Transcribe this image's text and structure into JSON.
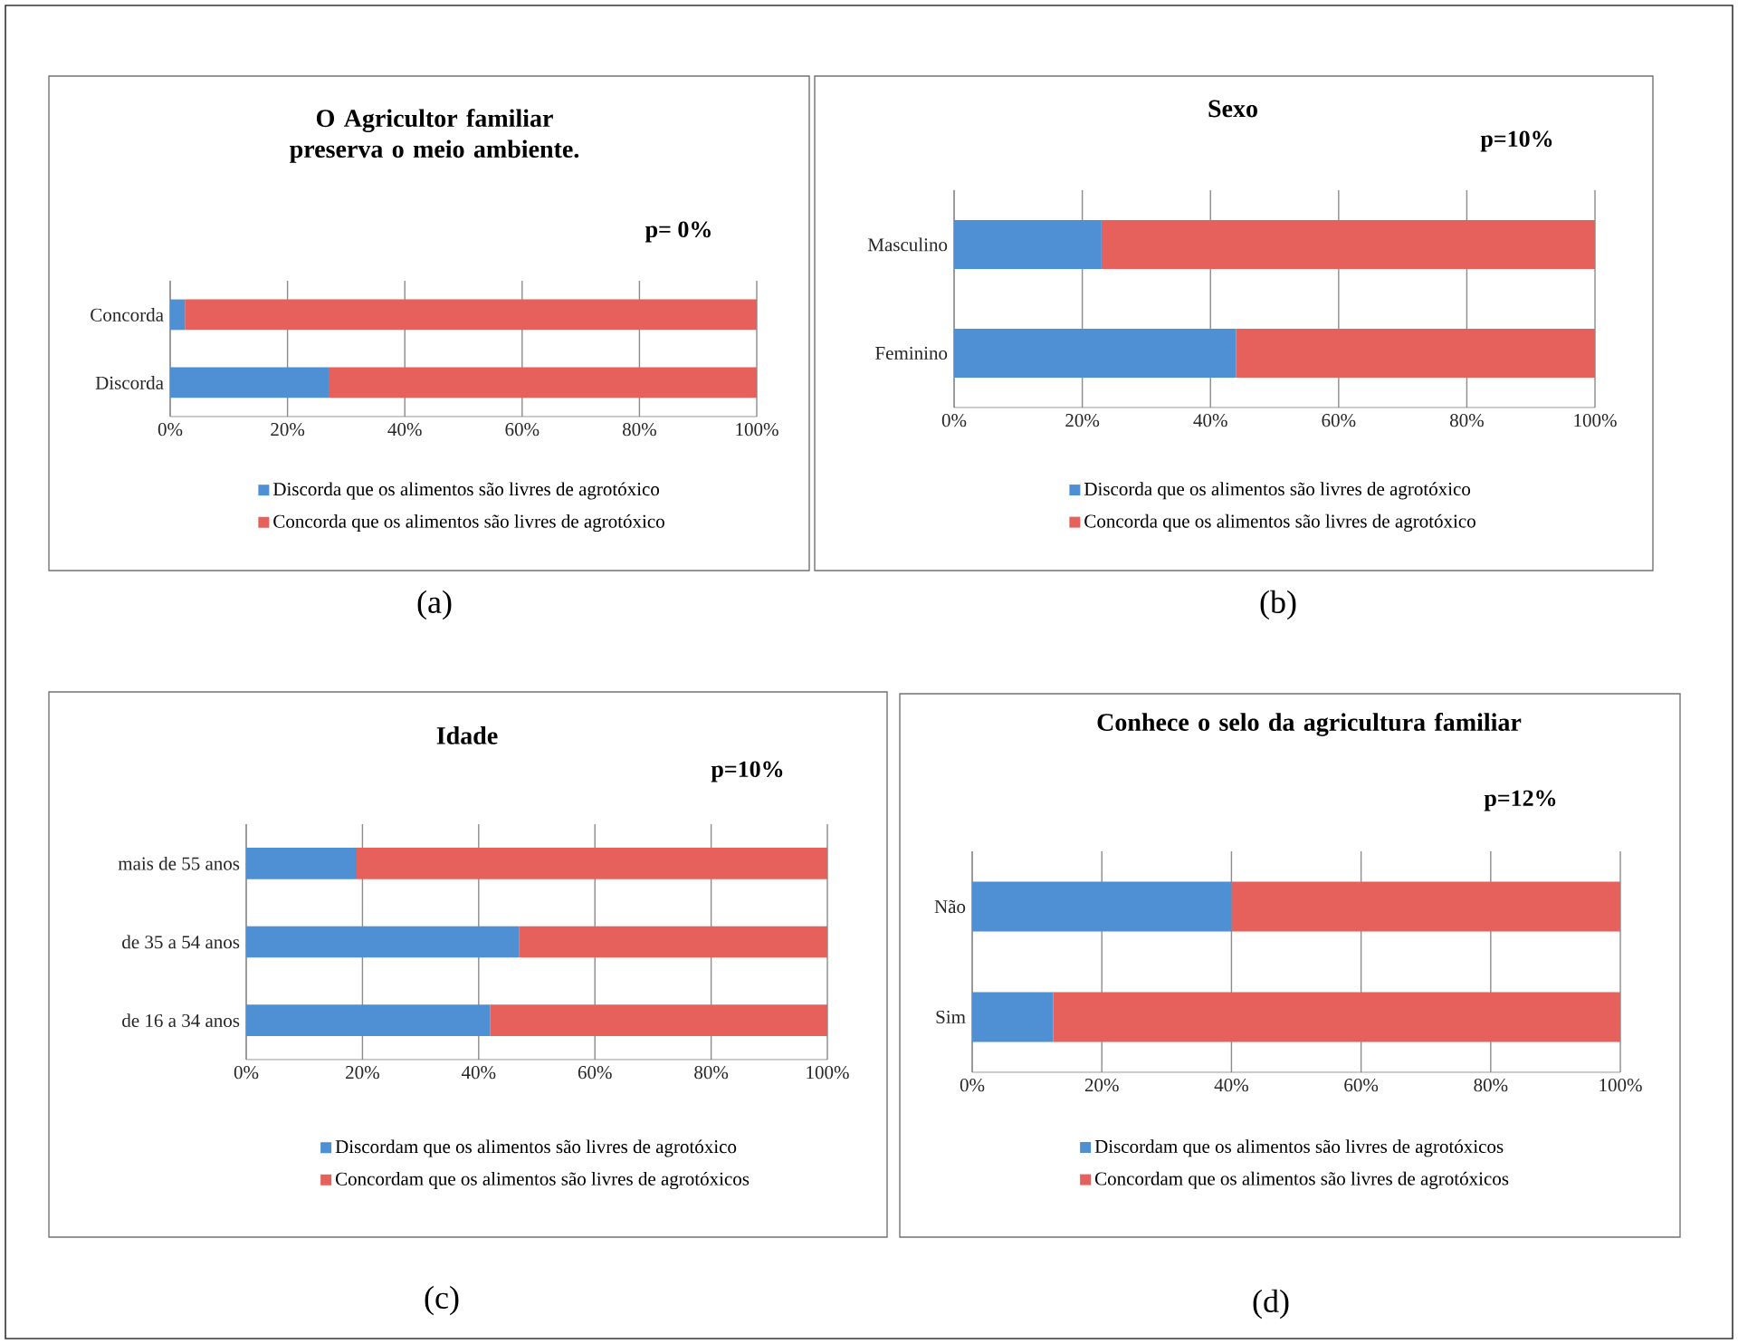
{
  "chart_data": [
    {
      "type": "bar",
      "orientation": "horizontal",
      "stacked": true,
      "title": "O Agricultor familiar preserva o meio ambiente.",
      "annotations": [
        "p= 0%",
        "(a)"
      ],
      "categories": [
        "Concorda",
        "Discorda"
      ],
      "series": [
        {
          "name": "Discorda que os alimentos são livres de agrotóxico",
          "color": "#4f8fd3",
          "values": [
            2.5,
            27
          ]
        },
        {
          "name": "Concorda que os alimentos são livres de agrotóxico",
          "color": "#e6605c",
          "values": [
            97.5,
            73
          ]
        }
      ],
      "xlim": [
        0,
        100
      ],
      "xticks": [
        {
          "value": 0,
          "label": "0%"
        },
        {
          "value": 20,
          "label": "20%"
        },
        {
          "value": 40,
          "label": "40%"
        },
        {
          "value": 60,
          "label": "60%"
        },
        {
          "value": 80,
          "label": "80%"
        },
        {
          "value": 100,
          "label": "100%"
        }
      ],
      "grid": "x",
      "legend": "bottom"
    },
    {
      "type": "bar",
      "orientation": "horizontal",
      "stacked": true,
      "title": "Sexo",
      "annotations": [
        "p=10%",
        "(b)"
      ],
      "categories": [
        "Masculino",
        "Feminino"
      ],
      "series": [
        {
          "name": "Discorda que os alimentos são livres de agrotóxico",
          "color": "#4f8fd3",
          "values": [
            23,
            44
          ]
        },
        {
          "name": "Concorda que os alimentos são livres de agrotóxico",
          "color": "#e6605c",
          "values": [
            77,
            56
          ]
        }
      ],
      "xlim": [
        0,
        100
      ],
      "xticks": [
        {
          "value": 0,
          "label": "0%"
        },
        {
          "value": 20,
          "label": "20%"
        },
        {
          "value": 40,
          "label": "40%"
        },
        {
          "value": 60,
          "label": "60%"
        },
        {
          "value": 80,
          "label": "80%"
        },
        {
          "value": 100,
          "label": "100%"
        }
      ],
      "grid": "x",
      "legend": "bottom"
    },
    {
      "type": "bar",
      "orientation": "horizontal",
      "stacked": true,
      "title": "Idade",
      "annotations": [
        "p=10%",
        "(c)"
      ],
      "categories": [
        "mais de 55 anos",
        "de 35 a 54 anos",
        "de 16 a 34 anos"
      ],
      "series": [
        {
          "name": "Discordam que os alimentos são livres de agrotóxico",
          "color": "#4f8fd3",
          "values": [
            19,
            47,
            42
          ]
        },
        {
          "name": "Concordam que os alimentos são livres de agrotóxicos",
          "color": "#e6605c",
          "values": [
            81,
            53,
            58
          ]
        }
      ],
      "xlim": [
        0,
        100
      ],
      "xticks": [
        {
          "value": 0,
          "label": "0%"
        },
        {
          "value": 20,
          "label": "20%"
        },
        {
          "value": 40,
          "label": "40%"
        },
        {
          "value": 60,
          "label": "60%"
        },
        {
          "value": 80,
          "label": "80%"
        },
        {
          "value": 100,
          "label": "100%"
        }
      ],
      "grid": "x",
      "legend": "bottom"
    },
    {
      "type": "bar",
      "orientation": "horizontal",
      "stacked": true,
      "title": "Conhece o selo da agricultura familiar",
      "annotations": [
        "p=12%",
        "(d)"
      ],
      "categories": [
        "Não",
        "Sim"
      ],
      "series": [
        {
          "name": "Discordam que os alimentos são livres de agrotóxicos",
          "color": "#4f8fd3",
          "values": [
            40,
            12.5
          ]
        },
        {
          "name": "Concordam que os alimentos são livres de agrotóxicos",
          "color": "#e6605c",
          "values": [
            60,
            87.5
          ]
        }
      ],
      "xlim": [
        0,
        100
      ],
      "xticks": [
        {
          "value": 0,
          "label": "0%"
        },
        {
          "value": 20,
          "label": "20%"
        },
        {
          "value": 40,
          "label": "40%"
        },
        {
          "value": 60,
          "label": "60%"
        },
        {
          "value": 80,
          "label": "80%"
        },
        {
          "value": 100,
          "label": "100%"
        }
      ],
      "grid": "x",
      "legend": "bottom"
    }
  ]
}
